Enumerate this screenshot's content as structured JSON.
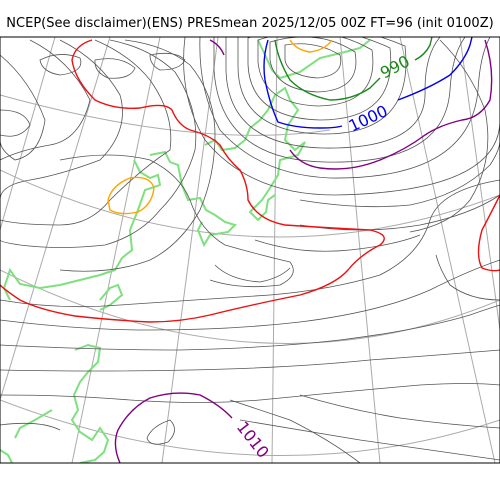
{
  "title": "NCEP(See disclaimer)(ENS) PRESmean 2025/12/05 00Z FT=96 (init 0100Z)",
  "contour_labels": [
    {
      "text": "990",
      "color": "#1a8a1a"
    },
    {
      "text": "1000",
      "color": "#0000ee"
    },
    {
      "text": "1010",
      "color": "#800080"
    }
  ],
  "colors": {
    "isobar": "#555555",
    "graticule": "#aaaaaa",
    "coastline": "#7ee07e",
    "red": "#ee1111",
    "orange": "#ffa500",
    "purple": "#800080",
    "blue": "#0000ee",
    "green": "#1a8a1a"
  }
}
